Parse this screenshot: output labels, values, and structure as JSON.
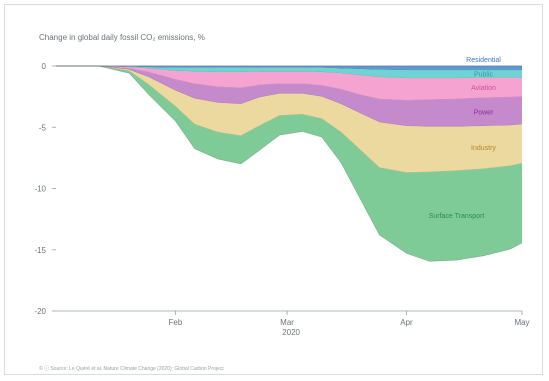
{
  "chart_data": {
    "type": "area",
    "title": "Change in global daily fossil CO₂ emissions, %",
    "xlabel": "2020",
    "ylabel": "",
    "ylim": [
      -20,
      0
    ],
    "xlim": [
      "2020-01-01",
      "2020-05-01"
    ],
    "y_ticks": [
      0,
      -5,
      -10,
      -15,
      -20
    ],
    "x_ticks": [
      {
        "date": "2020-02-01",
        "label": "Feb"
      },
      {
        "date": "2020-03-01",
        "label": "Mar"
      },
      {
        "date": "2020-04-01",
        "label": "Apr"
      },
      {
        "date": "2020-05-01",
        "label": "May"
      }
    ],
    "x_year_label": "2020",
    "grid": false,
    "stacked": true,
    "x": [
      "2020-01-01",
      "2020-01-12",
      "2020-01-20",
      "2020-01-25",
      "2020-02-01",
      "2020-02-06",
      "2020-02-12",
      "2020-02-18",
      "2020-02-23",
      "2020-02-28",
      "2020-03-05",
      "2020-03-10",
      "2020-03-15",
      "2020-03-20",
      "2020-03-25",
      "2020-04-01",
      "2020-04-07",
      "2020-04-14",
      "2020-04-21",
      "2020-04-28",
      "2020-05-01"
    ],
    "series": [
      {
        "name": "Residential",
        "color": "#5b9bd5",
        "values": [
          0,
          0,
          -0.05,
          -0.1,
          -0.15,
          -0.15,
          -0.15,
          -0.15,
          -0.15,
          -0.15,
          -0.15,
          -0.15,
          -0.2,
          -0.25,
          -0.3,
          -0.35,
          -0.35,
          -0.35,
          -0.35,
          -0.35,
          -0.35
        ]
      },
      {
        "name": "Public",
        "color": "#6fd3d3",
        "values": [
          0,
          0,
          -0.05,
          -0.1,
          -0.25,
          -0.3,
          -0.35,
          -0.35,
          -0.3,
          -0.3,
          -0.3,
          -0.35,
          -0.4,
          -0.5,
          -0.6,
          -0.65,
          -0.65,
          -0.65,
          -0.6,
          -0.6,
          -0.6
        ]
      },
      {
        "name": "Aviation",
        "color": "#f5a3d1",
        "values": [
          0,
          0,
          -0.1,
          -0.3,
          -0.7,
          -1.0,
          -1.2,
          -1.3,
          -1.1,
          -1.0,
          -1.0,
          -1.1,
          -1.3,
          -1.6,
          -1.8,
          -1.8,
          -1.75,
          -1.7,
          -1.65,
          -1.6,
          -1.55
        ]
      },
      {
        "name": "Power",
        "color": "#c48acb",
        "values": [
          0,
          0,
          -0.1,
          -0.4,
          -0.9,
          -1.2,
          -1.3,
          -1.3,
          -1.0,
          -0.8,
          -0.8,
          -0.9,
          -1.2,
          -1.5,
          -1.9,
          -2.1,
          -2.2,
          -2.25,
          -2.3,
          -2.3,
          -2.25
        ]
      },
      {
        "name": "Industry",
        "color": "#ecd9a0",
        "values": [
          0,
          0,
          -0.1,
          -0.6,
          -1.3,
          -2.1,
          -2.4,
          -2.6,
          -2.3,
          -1.8,
          -1.7,
          -1.8,
          -2.3,
          -3.0,
          -3.7,
          -3.8,
          -3.7,
          -3.6,
          -3.5,
          -3.3,
          -3.2
        ]
      },
      {
        "name": "Surface Transport",
        "color": "#7ecb97",
        "values": [
          0,
          0,
          -0.2,
          -0.8,
          -1.2,
          -2.0,
          -2.2,
          -2.3,
          -2.0,
          -1.6,
          -1.4,
          -1.5,
          -2.5,
          -4.0,
          -5.5,
          -6.6,
          -7.3,
          -7.3,
          -7.1,
          -6.8,
          -6.5
        ]
      }
    ],
    "annotations": [
      "Residential",
      "Public",
      "Aviation",
      "Power",
      "Industry",
      "Surface Transport"
    ],
    "footer": "© ⓘ Source: Le Quéré et al. Nature Climate Change (2020); Global Carbon Project"
  }
}
